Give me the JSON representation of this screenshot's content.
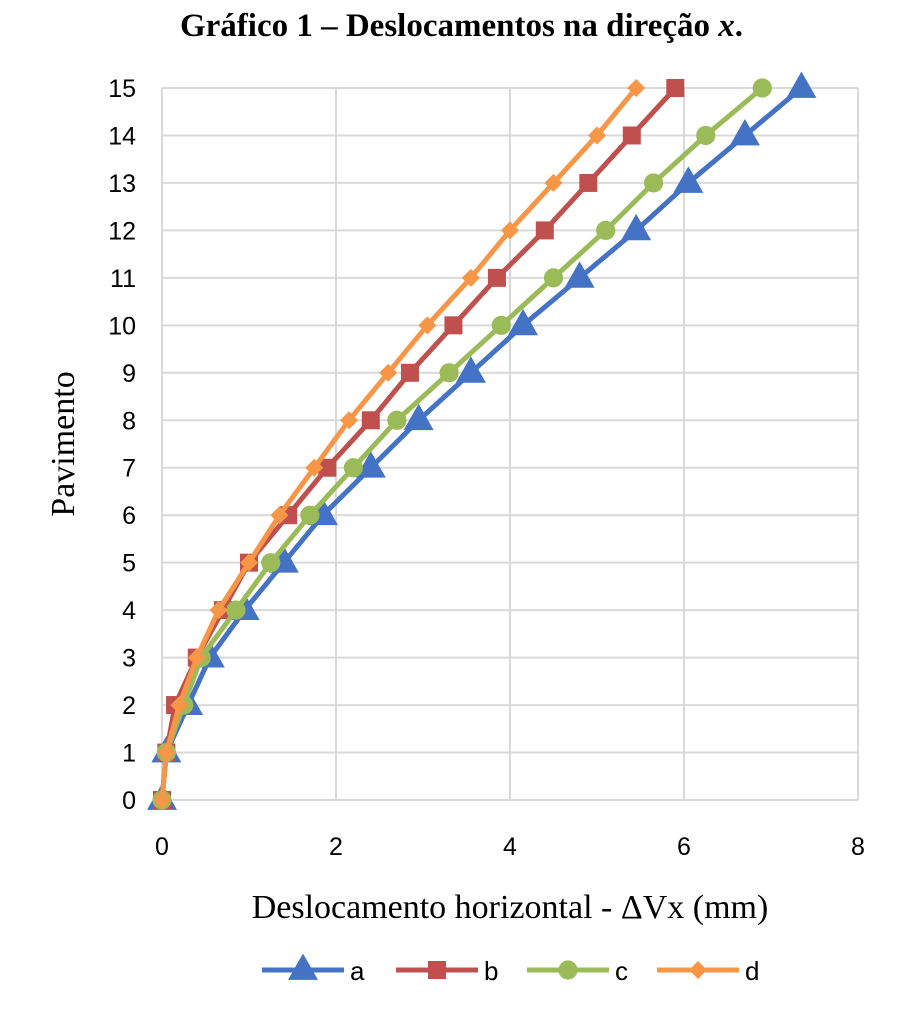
{
  "chart_data": {
    "type": "line",
    "title_main": "Gráfico 1 – Deslocamentos na direção ",
    "title_var": "x",
    "title_end": ".",
    "xlabel": "Deslocamento horizontal - ΔVx (mm)",
    "ylabel": "Pavimento",
    "xlim": [
      0,
      8
    ],
    "ylim": [
      0,
      15
    ],
    "xticks": [
      "0",
      "2",
      "4",
      "6",
      "8"
    ],
    "yticks": [
      "0",
      "1",
      "2",
      "3",
      "4",
      "5",
      "6",
      "7",
      "8",
      "9",
      "10",
      "11",
      "12",
      "13",
      "14",
      "15"
    ],
    "grid": true,
    "legend_position": "bottom",
    "series": [
      {
        "name": "a",
        "color": "#4472C4",
        "marker": "triangle",
        "x": [
          0,
          0.05,
          0.3,
          0.55,
          0.95,
          1.4,
          1.85,
          2.4,
          2.95,
          3.55,
          4.15,
          4.8,
          5.45,
          6.05,
          6.7,
          7.35
        ],
        "y": [
          0,
          1,
          2,
          3,
          4,
          5,
          6,
          7,
          8,
          9,
          10,
          11,
          12,
          13,
          14,
          15
        ]
      },
      {
        "name": "b",
        "color": "#C0504D",
        "marker": "square",
        "x": [
          0,
          0.05,
          0.15,
          0.4,
          0.7,
          1.0,
          1.45,
          1.9,
          2.4,
          2.85,
          3.35,
          3.85,
          4.4,
          4.9,
          5.4,
          5.9
        ],
        "y": [
          0,
          1,
          2,
          3,
          4,
          5,
          6,
          7,
          8,
          9,
          10,
          11,
          12,
          13,
          14,
          15
        ]
      },
      {
        "name": "c",
        "color": "#9BBB59",
        "marker": "circle",
        "x": [
          0,
          0.05,
          0.25,
          0.45,
          0.85,
          1.25,
          1.7,
          2.2,
          2.7,
          3.3,
          3.9,
          4.5,
          5.1,
          5.65,
          6.25,
          6.9
        ],
        "y": [
          0,
          1,
          2,
          3,
          4,
          5,
          6,
          7,
          8,
          9,
          10,
          11,
          12,
          13,
          14,
          15
        ]
      },
      {
        "name": "d",
        "color": "#F79646",
        "marker": "diamond",
        "x": [
          0,
          0.05,
          0.2,
          0.4,
          0.65,
          1.0,
          1.35,
          1.75,
          2.15,
          2.6,
          3.05,
          3.55,
          4.0,
          4.5,
          5.0,
          5.45
        ],
        "y": [
          0,
          1,
          2,
          3,
          4,
          5,
          6,
          7,
          8,
          9,
          10,
          11,
          12,
          13,
          14,
          15
        ]
      }
    ]
  }
}
